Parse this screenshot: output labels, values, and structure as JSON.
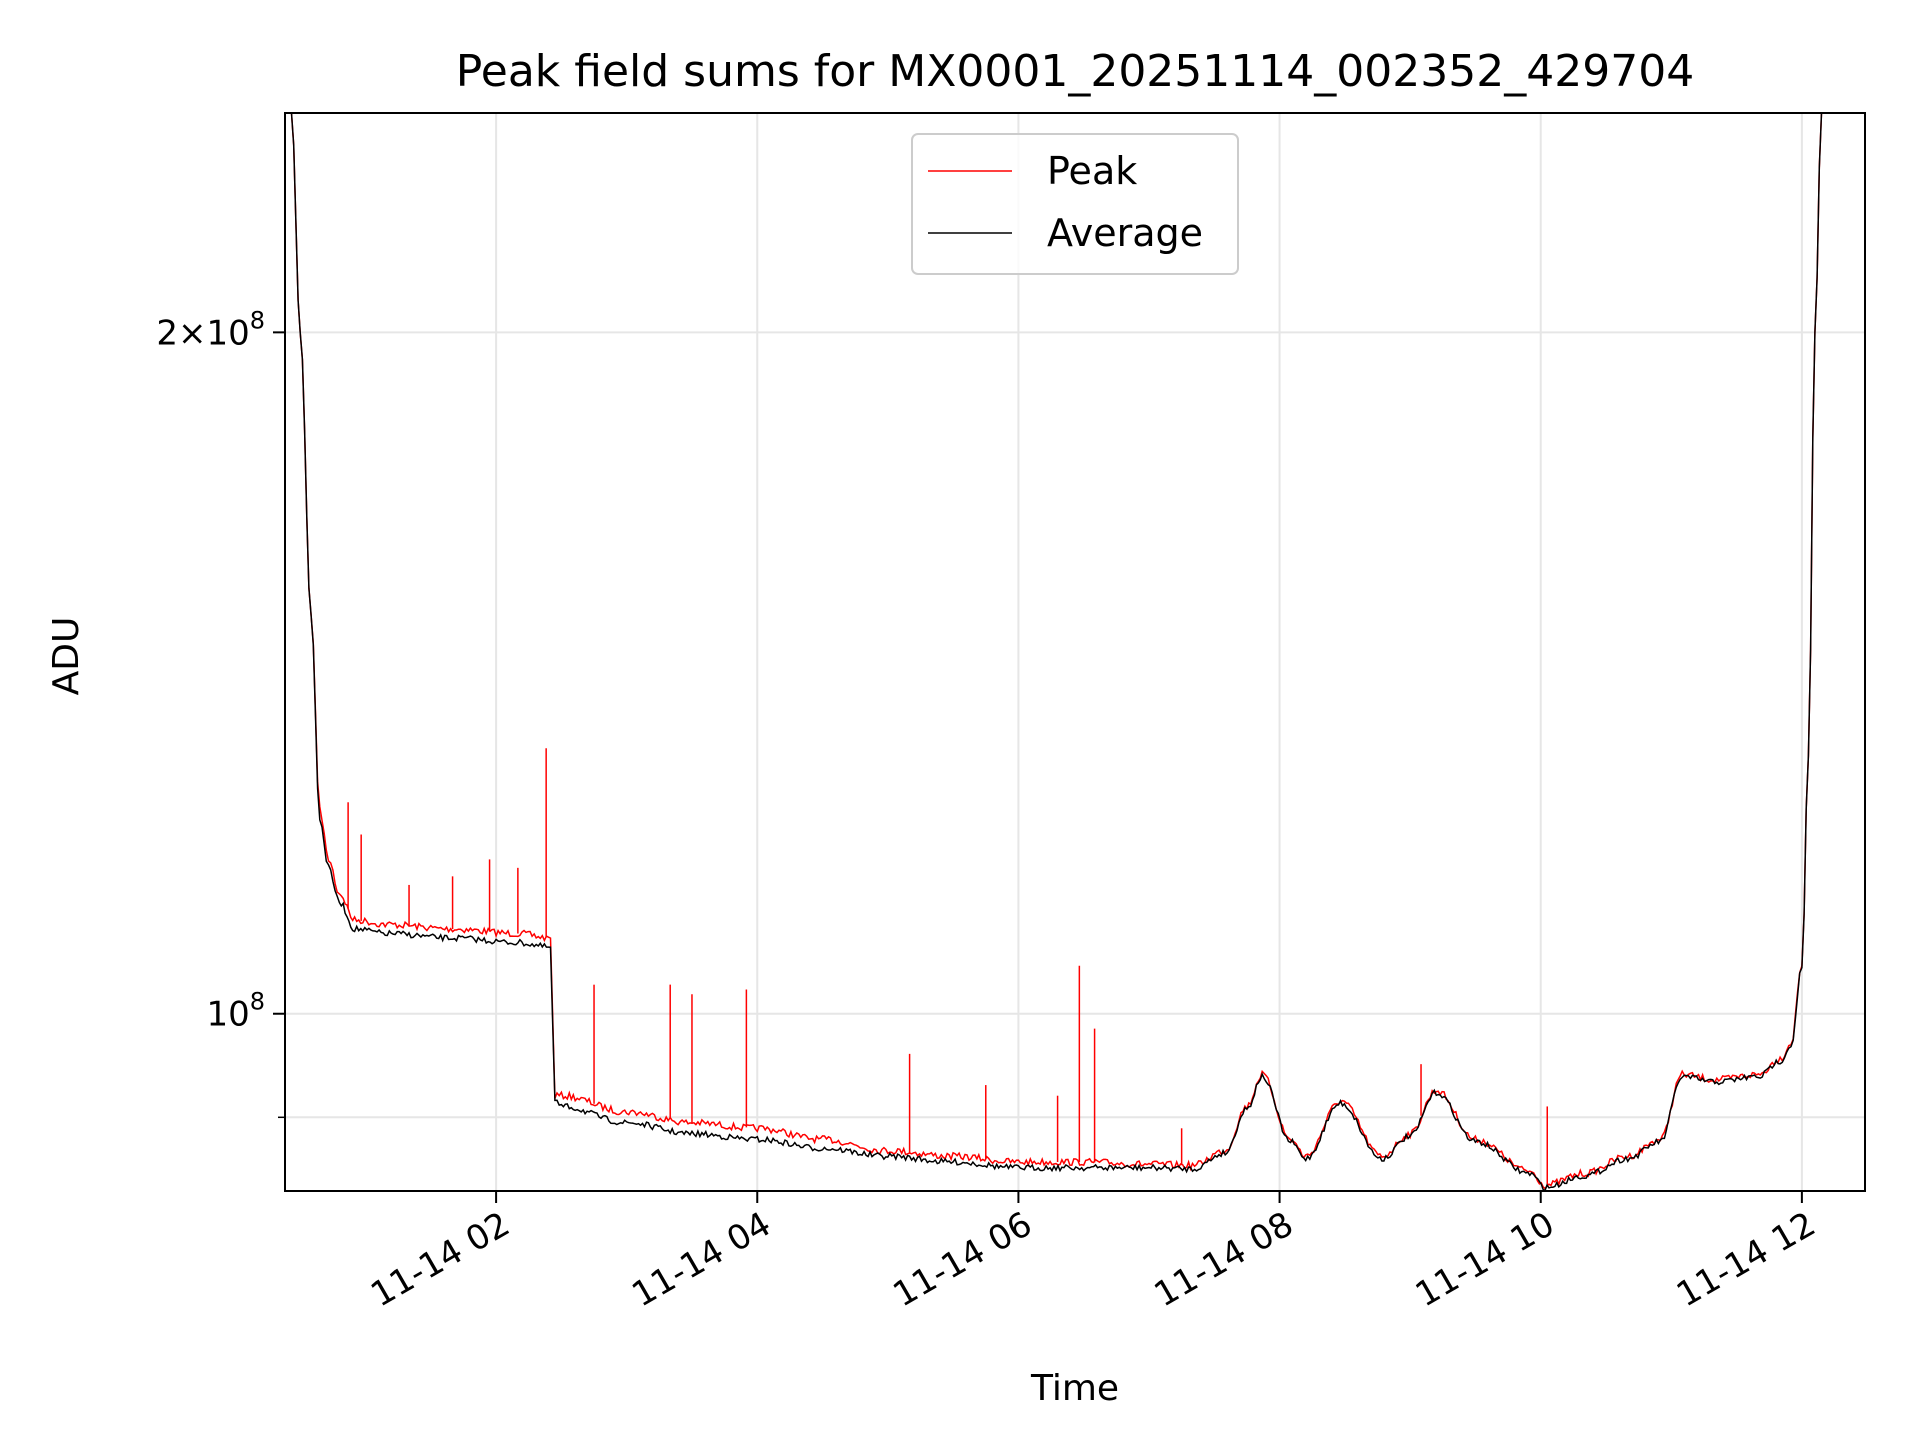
{
  "chart_data": {
    "type": "line",
    "title": "Peak field sums for MX0001_20251114_002352_429704",
    "xlabel": "Time",
    "ylabel": "ADU",
    "yscale": "log",
    "xlim": [
      "2025-11-14 00:23",
      "2025-11-14 12:29"
    ],
    "ylim": [
      83500000,
      250000000
    ],
    "grid": true,
    "legend_position": "top-center",
    "x_ticks": [
      "11-14 02",
      "11-14 04",
      "11-14 06",
      "11-14 08",
      "11-14 10",
      "11-14 12"
    ],
    "x_tick_dates": [
      "2025-11-14 02:00",
      "2025-11-14 04:00",
      "2025-11-14 06:00",
      "2025-11-14 08:00",
      "2025-11-14 10:00",
      "2025-11-14 12:00"
    ],
    "y_ticks": [
      {
        "value": 200000000,
        "mantissa": "2",
        "exponent": "8"
      },
      {
        "value": 100000000,
        "mantissa": "",
        "exponent": "8"
      }
    ],
    "y_minor_gridlines": [
      90000000
    ],
    "x": [
      "2025-11-14 00:26",
      "2025-11-14 00:30",
      "2025-11-14 00:35",
      "2025-11-14 00:39",
      "2025-11-14 00:43",
      "2025-11-14 00:48",
      "2025-11-14 00:55",
      "2025-11-14 01:10",
      "2025-11-14 01:40",
      "2025-11-14 02:10",
      "2025-11-14 02:25",
      "2025-11-14 02:27",
      "2025-11-14 02:30",
      "2025-11-14 03:00",
      "2025-11-14 03:30",
      "2025-11-14 04:00",
      "2025-11-14 04:30",
      "2025-11-14 05:00",
      "2025-11-14 05:30",
      "2025-11-14 06:00",
      "2025-11-14 06:30",
      "2025-11-14 07:00",
      "2025-11-14 07:20",
      "2025-11-14 07:35",
      "2025-11-14 07:45",
      "2025-11-14 07:52",
      "2025-11-14 08:05",
      "2025-11-14 08:12",
      "2025-11-14 08:28",
      "2025-11-14 08:47",
      "2025-11-14 09:00",
      "2025-11-14 09:12",
      "2025-11-14 09:30",
      "2025-11-14 09:55",
      "2025-11-14 10:02",
      "2025-11-14 10:20",
      "2025-11-14 10:40",
      "2025-11-14 10:55",
      "2025-11-14 11:05",
      "2025-11-14 11:20",
      "2025-11-14 11:40",
      "2025-11-14 11:50",
      "2025-11-14 11:55",
      "2025-11-14 12:00",
      "2025-11-14 12:03",
      "2025-11-14 12:06",
      "2025-11-14 12:09"
    ],
    "series": [
      {
        "name": "Peak",
        "color": "#ff0000",
        "values": [
          250000000,
          200000000,
          150000000,
          123000000,
          117000000,
          113000000,
          110000000,
          109500000,
          109000000,
          108500000,
          108000000,
          92000000,
          92000000,
          90500000,
          89500000,
          89000000,
          88000000,
          87000000,
          86500000,
          86000000,
          86000000,
          85800000,
          85700000,
          87000000,
          91000000,
          94000000,
          88000000,
          86500000,
          91500000,
          86500000,
          88500000,
          92500000,
          88000000,
          85200000,
          84000000,
          85000000,
          86500000,
          88000000,
          94000000,
          93500000,
          94000000,
          95500000,
          97000000,
          105000000,
          130000000,
          200000000,
          250000000
        ],
        "spikes": [
          {
            "x": "2025-11-14 00:52",
            "value": 124000000
          },
          {
            "x": "2025-11-14 00:58",
            "value": 120000000
          },
          {
            "x": "2025-11-14 01:20",
            "value": 114000000
          },
          {
            "x": "2025-11-14 01:40",
            "value": 115000000
          },
          {
            "x": "2025-11-14 01:57",
            "value": 117000000
          },
          {
            "x": "2025-11-14 02:10",
            "value": 116000000
          },
          {
            "x": "2025-11-14 02:23",
            "value": 131000000
          },
          {
            "x": "2025-11-14 02:45",
            "value": 103000000
          },
          {
            "x": "2025-11-14 03:20",
            "value": 103000000
          },
          {
            "x": "2025-11-14 03:30",
            "value": 102000000
          },
          {
            "x": "2025-11-14 03:55",
            "value": 102500000
          },
          {
            "x": "2025-11-14 05:10",
            "value": 96000000
          },
          {
            "x": "2025-11-14 05:45",
            "value": 93000000
          },
          {
            "x": "2025-11-14 06:18",
            "value": 92000000
          },
          {
            "x": "2025-11-14 06:28",
            "value": 105000000
          },
          {
            "x": "2025-11-14 06:35",
            "value": 98500000
          },
          {
            "x": "2025-11-14 07:15",
            "value": 89000000
          },
          {
            "x": "2025-11-14 09:05",
            "value": 95000000
          },
          {
            "x": "2025-11-14 10:03",
            "value": 91000000
          }
        ]
      },
      {
        "name": "Average",
        "color": "#000000",
        "values": [
          250000000,
          200000000,
          150000000,
          122000000,
          116000000,
          112000000,
          109000000,
          108500000,
          108000000,
          107500000,
          107000000,
          91500000,
          91000000,
          89500000,
          88500000,
          88000000,
          87200000,
          86500000,
          86000000,
          85500000,
          85500000,
          85500000,
          85400000,
          86800000,
          90800000,
          93800000,
          87800000,
          86300000,
          91300000,
          86300000,
          88300000,
          92300000,
          87800000,
          85000000,
          83800000,
          84800000,
          86300000,
          87800000,
          93800000,
          93300000,
          93800000,
          95300000,
          96800000,
          104800000,
          130000000,
          200000000,
          250000000
        ]
      }
    ]
  }
}
